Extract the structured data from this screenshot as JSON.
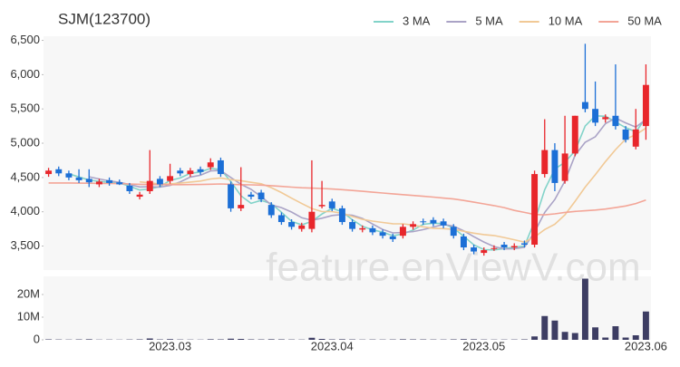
{
  "chart_data": {
    "type": "candlestick",
    "title": "SJM(123700)",
    "watermark": "feature.enViewV.com",
    "up_color": "#e8262b",
    "down_color": "#1c6fd6",
    "volume_color": "#3d3d63",
    "categories": [
      null,
      null,
      null,
      null,
      null,
      null,
      null,
      null,
      null,
      null,
      null,
      null,
      "2023.03",
      null,
      null,
      null,
      null,
      null,
      null,
      null,
      null,
      null,
      null,
      null,
      null,
      null,
      null,
      null,
      "2023.04",
      null,
      null,
      null,
      null,
      null,
      null,
      null,
      null,
      null,
      null,
      null,
      null,
      null,
      null,
      "2023.05",
      null,
      null,
      null,
      null,
      null,
      null,
      null,
      null,
      null,
      null,
      null,
      null,
      null,
      null,
      null,
      "2023.06"
    ],
    "candles": {
      "open": [
        4550,
        4620,
        4560,
        4500,
        4480,
        4400,
        4460,
        4430,
        4380,
        4220,
        4300,
        4480,
        4450,
        4600,
        4550,
        4620,
        4650,
        4750,
        4400,
        4050,
        4250,
        4280,
        4100,
        3950,
        3850,
        3750,
        3750,
        4080,
        4150,
        4050,
        3850,
        3740,
        3760,
        3700,
        3640,
        3650,
        3780,
        3860,
        3880,
        3860,
        3780,
        3640,
        3480,
        3400,
        3460,
        3520,
        3480,
        3540,
        3520,
        4550,
        4900,
        4450,
        4850,
        5600,
        5500,
        5350,
        5400,
        5200,
        4950,
        5250
      ],
      "high": [
        4640,
        4660,
        4600,
        4620,
        4620,
        4480,
        4500,
        4470,
        4420,
        4290,
        4900,
        4520,
        4700,
        4640,
        4640,
        4660,
        4780,
        4790,
        4440,
        4650,
        4290,
        4320,
        4140,
        3990,
        3890,
        3840,
        4750,
        4450,
        4190,
        4090,
        3890,
        3800,
        3800,
        3740,
        3680,
        3820,
        3860,
        3900,
        3920,
        3900,
        3820,
        3680,
        3520,
        3480,
        3510,
        3560,
        3540,
        3580,
        4600,
        5350,
        5000,
        5400,
        5400,
        6450,
        5900,
        5420,
        6150,
        5250,
        5500,
        6150
      ],
      "low": [
        4510,
        4520,
        4460,
        4420,
        4360,
        4360,
        4380,
        4390,
        4260,
        4180,
        4260,
        4360,
        4410,
        4520,
        4510,
        4540,
        4610,
        4510,
        4000,
        4010,
        4180,
        4140,
        3910,
        3810,
        3740,
        3710,
        3700,
        4050,
        4010,
        3810,
        3710,
        3700,
        3660,
        3610,
        3560,
        3610,
        3740,
        3810,
        3790,
        3760,
        3610,
        3440,
        3380,
        3360,
        3430,
        3440,
        3440,
        3480,
        3480,
        4500,
        4300,
        4410,
        4810,
        5450,
        5250,
        5300,
        5200,
        5010,
        4910,
        5050
      ],
      "close": [
        4600,
        4560,
        4500,
        4460,
        4430,
        4440,
        4420,
        4400,
        4300,
        4250,
        4450,
        4400,
        4520,
        4560,
        4600,
        4580,
        4720,
        4550,
        4050,
        4100,
        4220,
        4180,
        3950,
        3850,
        3780,
        3800,
        4000,
        4100,
        4050,
        3850,
        3750,
        3760,
        3700,
        3650,
        3600,
        3780,
        3820,
        3850,
        3830,
        3800,
        3650,
        3480,
        3420,
        3440,
        3470,
        3480,
        3500,
        3520,
        4550,
        4900,
        4420,
        4850,
        5400,
        5500,
        5300,
        5380,
        5250,
        5050,
        5200,
        5850
      ]
    },
    "volume": [
      200000,
      150000,
      120000,
      180000,
      250000,
      100000,
      120000,
      90000,
      150000,
      200000,
      600000,
      180000,
      300000,
      150000,
      120000,
      100000,
      250000,
      200000,
      500000,
      400000,
      200000,
      180000,
      250000,
      200000,
      150000,
      120000,
      900000,
      400000,
      200000,
      250000,
      180000,
      120000,
      150000,
      130000,
      160000,
      250000,
      200000,
      180000,
      150000,
      140000,
      200000,
      300000,
      250000,
      150000,
      120000,
      130000,
      140000,
      200000,
      1500000,
      10500000,
      8500000,
      3500000,
      3000000,
      27000000,
      5500000,
      1000000,
      6000000,
      1000000,
      2000000,
      12500000
    ],
    "moving_averages": [
      {
        "name": "3 MA",
        "color": "#82d3c9",
        "values": [
          null,
          null,
          4553,
          4507,
          4463,
          4443,
          4430,
          4420,
          4373,
          4317,
          4333,
          4367,
          4457,
          4493,
          4560,
          4580,
          4633,
          4617,
          4440,
          4233,
          4123,
          4167,
          4117,
          3993,
          3860,
          3810,
          3860,
          3967,
          4050,
          4000,
          3883,
          3787,
          3737,
          3703,
          3650,
          3677,
          3733,
          3817,
          3833,
          3827,
          3760,
          3643,
          3517,
          3447,
          3443,
          3463,
          3483,
          3500,
          3857,
          4323,
          4623,
          4723,
          4890,
          5250,
          5400,
          5393,
          5310,
          5227,
          5167,
          5367
        ]
      },
      {
        "name": "5 MA",
        "color": "#aaa3c6",
        "values": [
          null,
          null,
          null,
          null,
          4510,
          4478,
          4450,
          4430,
          4398,
          4362,
          4364,
          4360,
          4384,
          4436,
          4506,
          4532,
          4596,
          4602,
          4500,
          4400,
          4328,
          4220,
          4100,
          4060,
          3996,
          3912,
          3876,
          3906,
          3946,
          3960,
          3950,
          3902,
          3822,
          3742,
          3692,
          3698,
          3710,
          3740,
          3776,
          3816,
          3790,
          3722,
          3636,
          3558,
          3492,
          3458,
          3462,
          3482,
          3704,
          3990,
          4178,
          4448,
          4824,
          5014,
          5094,
          5286,
          5366,
          5296,
          5236,
          5346
        ]
      },
      {
        "name": "10 MA",
        "color": "#f1c996",
        "values": [
          null,
          null,
          null,
          null,
          null,
          null,
          null,
          null,
          null,
          4436,
          4421,
          4405,
          4407,
          4417,
          4434,
          4448,
          4478,
          4493,
          4468,
          4453,
          4430,
          4408,
          4351,
          4280,
          4198,
          4120,
          4048,
          4003,
          4003,
          3978,
          3931,
          3889,
          3864,
          3844,
          3826,
          3824,
          3806,
          3781,
          3759,
          3754,
          3744,
          3716,
          3688,
          3667,
          3654,
          3624,
          3592,
          3559,
          3631,
          3741,
          3818,
          3955,
          4153,
          4359,
          4542,
          4732,
          4907,
          5060,
          5125,
          5220
        ]
      },
      {
        "name": "50 MA",
        "color": "#f3a597",
        "values": [
          4420,
          4420,
          4420,
          4418,
          4416,
          4414,
          4412,
          4410,
          4405,
          4400,
          4398,
          4396,
          4395,
          4395,
          4396,
          4398,
          4402,
          4405,
          4400,
          4395,
          4392,
          4388,
          4380,
          4370,
          4360,
          4350,
          4345,
          4340,
          4332,
          4322,
          4310,
          4298,
          4286,
          4274,
          4262,
          4250,
          4238,
          4226,
          4214,
          4200,
          4186,
          4165,
          4140,
          4115,
          4090,
          4060,
          4020,
          3990,
          3960,
          3955,
          3970,
          3990,
          4005,
          4015,
          4025,
          4040,
          4060,
          4085,
          4120,
          4170
        ]
      }
    ],
    "ylim": [
      3150,
      6560
    ],
    "yticks": [
      {
        "value": 3500,
        "label": "3,500"
      },
      {
        "value": 4000,
        "label": "4,000"
      },
      {
        "value": 4500,
        "label": "4,500"
      },
      {
        "value": 5000,
        "label": "5,000"
      },
      {
        "value": 5500,
        "label": "5,500"
      },
      {
        "value": 6000,
        "label": "6,000"
      },
      {
        "value": 6500,
        "label": "6,500"
      }
    ],
    "volume_ylim": [
      0,
      28000000
    ],
    "volume_yticks": [
      0,
      {
        "value": 10000000,
        "label": "10M"
      },
      {
        "value": 20000000,
        "label": "20M"
      }
    ]
  }
}
